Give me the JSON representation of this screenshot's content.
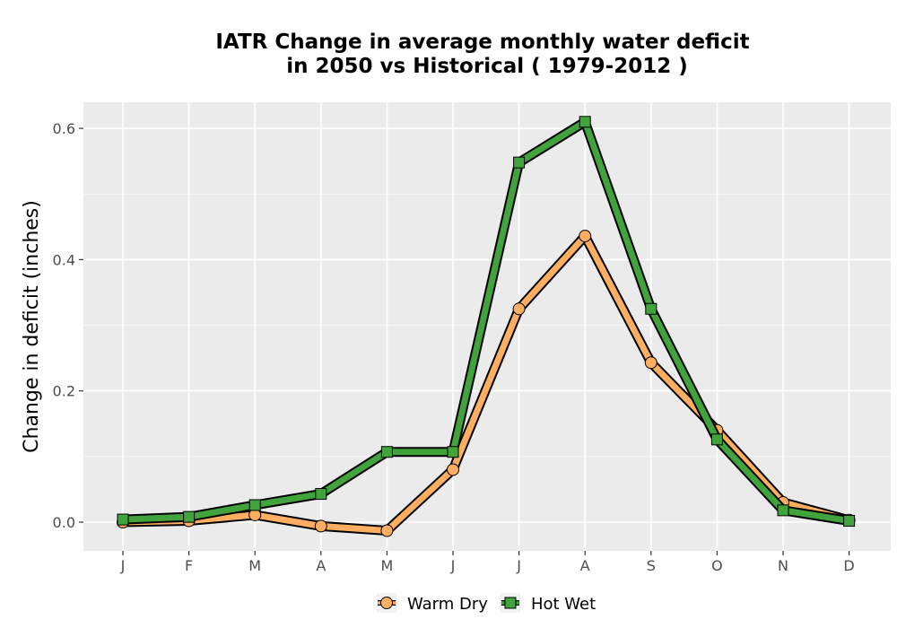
{
  "chart_data": {
    "type": "line",
    "title_lines": [
      "IATR  Change in average monthly water deficit",
      "in 2050 vs Historical ( 1979-2012 )"
    ],
    "xlabel": "",
    "ylabel": "Change in deficit (inches)",
    "categories": [
      "J",
      "F",
      "M",
      "A",
      "M",
      "J",
      "J",
      "A",
      "S",
      "O",
      "N",
      "D"
    ],
    "ylim": [
      -0.04,
      0.64
    ],
    "yticks": [
      0.0,
      0.2,
      0.4,
      0.6
    ],
    "ytick_labels": [
      "0.0",
      "0.2",
      "0.4",
      "0.6"
    ],
    "grid": true,
    "legend_position": "bottom",
    "series": [
      {
        "name": "Warm Dry",
        "marker": "circle",
        "color": "#fdae61",
        "values": [
          0.0,
          0.002,
          0.011,
          -0.006,
          -0.013,
          0.08,
          0.325,
          0.436,
          0.243,
          0.14,
          0.03,
          0.003
        ]
      },
      {
        "name": "Hot Wet",
        "marker": "square",
        "color": "#41a33b",
        "values": [
          0.004,
          0.008,
          0.026,
          0.043,
          0.107,
          0.107,
          0.548,
          0.61,
          0.325,
          0.126,
          0.018,
          0.002
        ]
      }
    ]
  },
  "colors": {
    "panel_background": "#ebebeb",
    "grid_major": "#ffffff",
    "outline": "#000000"
  }
}
